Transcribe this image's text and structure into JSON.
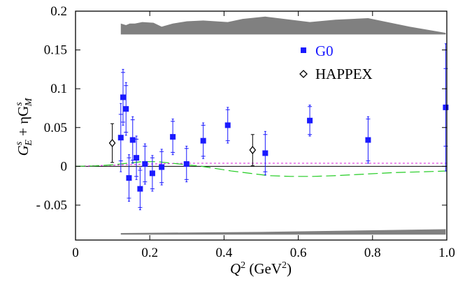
{
  "chart_data": {
    "type": "scatter",
    "xlabel": {
      "main": "Q",
      "sup": "2",
      "unit_open": " (GeV",
      "unit_sup": "2",
      "unit_close": ")"
    },
    "ylabel": {
      "p1": "G",
      "p1_sup": "s",
      "p1_sub": "E",
      "mid": " + ηG",
      "p2_sup": "s",
      "p2_sub": "M"
    },
    "xlim": [
      0,
      1.0
    ],
    "ylim": [
      -0.095,
      0.2
    ],
    "xticks": [
      {
        "v": 0,
        "label": "0"
      },
      {
        "v": 0.2,
        "label": "0.2"
      },
      {
        "v": 0.4,
        "label": "0.4"
      },
      {
        "v": 0.6,
        "label": "0.6"
      },
      {
        "v": 0.8,
        "label": "0.8"
      },
      {
        "v": 1.0,
        "label": "1.0"
      }
    ],
    "yticks": [
      {
        "v": -0.05,
        "label": "- 0.05"
      },
      {
        "v": 0,
        "label": "0"
      },
      {
        "v": 0.05,
        "label": "0.05"
      },
      {
        "v": 0.1,
        "label": "0.1"
      },
      {
        "v": 0.15,
        "label": "0.15"
      },
      {
        "v": 0.2,
        "label": "0.2"
      }
    ],
    "legend": {
      "position": "top-right"
    },
    "colors": {
      "g0": "#1a1aff",
      "happex": "#000000",
      "band": "#808080",
      "green_curve": "#22cc22",
      "magenta_curve": "#dd33dd"
    },
    "series": [
      {
        "name": "G0",
        "marker": "square",
        "points": [
          {
            "x": 0.122,
            "y": 0.037,
            "stat": 0.03,
            "tot": 0.044
          },
          {
            "x": 0.128,
            "y": 0.089,
            "stat": 0.032,
            "tot": 0.036
          },
          {
            "x": 0.136,
            "y": 0.074,
            "stat": 0.03,
            "tot": 0.034
          },
          {
            "x": 0.144,
            "y": -0.015,
            "stat": 0.026,
            "tot": 0.03
          },
          {
            "x": 0.154,
            "y": 0.034,
            "stat": 0.026,
            "tot": 0.03
          },
          {
            "x": 0.164,
            "y": 0.011,
            "stat": 0.024,
            "tot": 0.028
          },
          {
            "x": 0.174,
            "y": -0.029,
            "stat": 0.024,
            "tot": 0.027
          },
          {
            "x": 0.187,
            "y": 0.003,
            "stat": 0.023,
            "tot": 0.026
          },
          {
            "x": 0.207,
            "y": -0.009,
            "stat": 0.02,
            "tot": 0.023
          },
          {
            "x": 0.232,
            "y": -0.001,
            "stat": 0.02,
            "tot": 0.023
          },
          {
            "x": 0.262,
            "y": 0.038,
            "stat": 0.02,
            "tot": 0.023
          },
          {
            "x": 0.299,
            "y": 0.003,
            "stat": 0.02,
            "tot": 0.023
          },
          {
            "x": 0.344,
            "y": 0.033,
            "stat": 0.02,
            "tot": 0.023
          },
          {
            "x": 0.41,
            "y": 0.053,
            "stat": 0.02,
            "tot": 0.023
          },
          {
            "x": 0.511,
            "y": 0.017,
            "stat": 0.024,
            "tot": 0.028
          },
          {
            "x": 0.631,
            "y": 0.059,
            "stat": 0.018,
            "tot": 0.02
          },
          {
            "x": 0.788,
            "y": 0.034,
            "stat": 0.027,
            "tot": 0.03
          },
          {
            "x": 0.997,
            "y": 0.076,
            "stat": 0.05,
            "tot": 0.082
          }
        ]
      },
      {
        "name": "HAPPEX",
        "marker": "diamond",
        "points": [
          {
            "x": 0.099,
            "y": 0.03,
            "err": 0.025
          },
          {
            "x": 0.477,
            "y": 0.021,
            "err": 0.02
          }
        ]
      }
    ],
    "upper_band": {
      "baseline": 0.17,
      "top": [
        [
          0.122,
          0.184
        ],
        [
          0.136,
          0.182
        ],
        [
          0.146,
          0.184
        ],
        [
          0.16,
          0.184
        ],
        [
          0.18,
          0.186
        ],
        [
          0.21,
          0.185
        ],
        [
          0.232,
          0.18
        ],
        [
          0.262,
          0.184
        ],
        [
          0.3,
          0.187
        ],
        [
          0.344,
          0.188
        ],
        [
          0.41,
          0.186
        ],
        [
          0.45,
          0.19
        ],
        [
          0.511,
          0.193
        ],
        [
          0.631,
          0.186
        ],
        [
          0.7,
          0.189
        ],
        [
          0.788,
          0.191
        ],
        [
          0.9,
          0.18
        ],
        [
          0.997,
          0.172
        ]
      ]
    },
    "lower_band": {
      "bottom": [
        [
          0.122,
          -0.088
        ],
        [
          0.997,
          -0.088
        ]
      ],
      "top": [
        [
          0.122,
          -0.086
        ],
        [
          0.5,
          -0.0845
        ],
        [
          0.997,
          -0.081
        ]
      ]
    },
    "green_curve": [
      [
        0,
        0
      ],
      [
        0.05,
        0.0005
      ],
      [
        0.1,
        0.002
      ],
      [
        0.14,
        0.004
      ],
      [
        0.18,
        0.006
      ],
      [
        0.22,
        0.006
      ],
      [
        0.26,
        0.004
      ],
      [
        0.3,
        0.002
      ],
      [
        0.34,
        0.0
      ],
      [
        0.38,
        -0.003
      ],
      [
        0.42,
        -0.006
      ],
      [
        0.47,
        -0.009
      ],
      [
        0.52,
        -0.012
      ],
      [
        0.58,
        -0.013
      ],
      [
        0.64,
        -0.013
      ],
      [
        0.7,
        -0.012
      ],
      [
        0.78,
        -0.01
      ],
      [
        0.86,
        -0.008
      ],
      [
        0.94,
        -0.007
      ],
      [
        1.0,
        -0.006
      ]
    ],
    "magenta_curve": [
      [
        0,
        0
      ],
      [
        0.1,
        0.0015
      ],
      [
        0.2,
        0.003
      ],
      [
        0.3,
        0.004
      ],
      [
        0.4,
        0.004
      ],
      [
        0.5,
        0.004
      ],
      [
        0.6,
        0.004
      ],
      [
        0.7,
        0.004
      ],
      [
        0.8,
        0.004
      ],
      [
        0.9,
        0.004
      ],
      [
        1.0,
        0.004
      ]
    ]
  }
}
